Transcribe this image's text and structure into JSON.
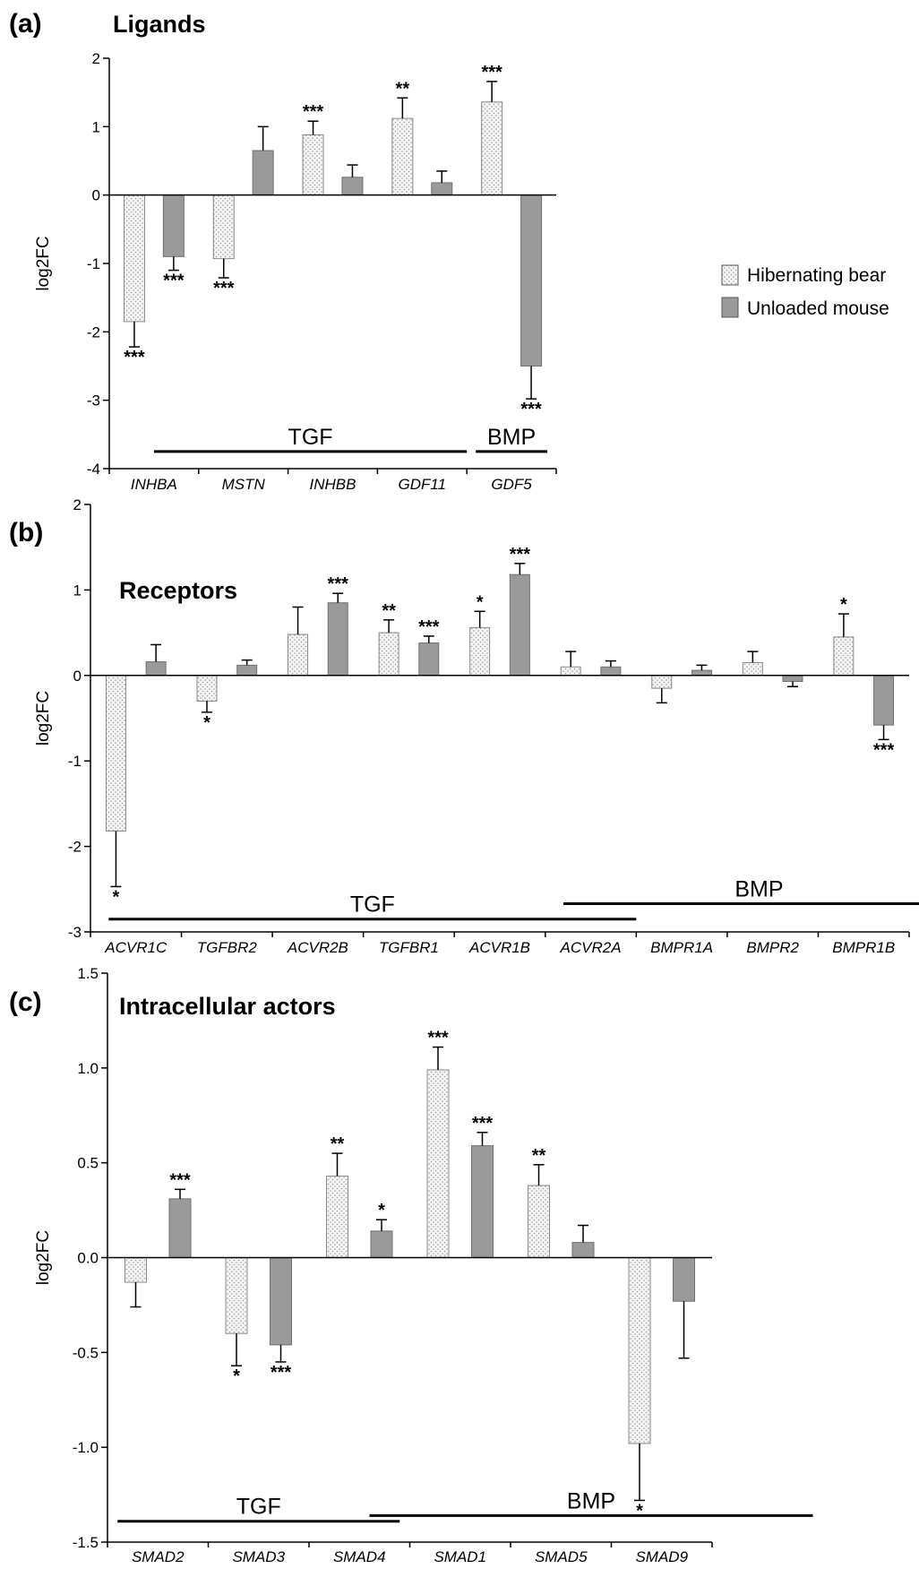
{
  "legend": {
    "bear": "Hibernating bear",
    "mouse": "Unloaded mouse"
  },
  "colors": {
    "bear_fill": "#f4f4f4",
    "bear_dot": "#9a9a9a",
    "mouse_fill": "#9a9a9a",
    "axis": "#000000"
  },
  "chart_data": [
    {
      "type": "bar",
      "panel_label": "(a)",
      "title": "Ligands",
      "ylabel": "log2FC",
      "ylim": [
        -4,
        2
      ],
      "yticks": [
        -4,
        -3,
        -2,
        -1,
        0,
        1,
        2
      ],
      "ytick_labels": [
        "-4",
        "-3",
        "-2",
        "-1",
        "0",
        "1",
        "2"
      ],
      "categories": [
        "INHBA",
        "MSTN",
        "INHBB",
        "GDF11",
        "GDF5"
      ],
      "series": [
        {
          "name": "Hibernating bear",
          "values": [
            -1.85,
            -0.93,
            0.88,
            1.12,
            1.36
          ],
          "errors": [
            0.37,
            0.28,
            0.2,
            0.3,
            0.3
          ],
          "sig": [
            "***",
            "***",
            "***",
            "**",
            "***"
          ]
        },
        {
          "name": "Unloaded mouse",
          "values": [
            -0.9,
            0.65,
            0.26,
            0.18,
            -2.5
          ],
          "errors": [
            0.2,
            0.35,
            0.18,
            0.17,
            0.48
          ],
          "sig": [
            "***",
            "",
            "",
            "",
            "***"
          ]
        }
      ],
      "groups": [
        {
          "label": "TGF",
          "from": 0,
          "to": 3.5,
          "y": -3.75
        },
        {
          "label": "BMP",
          "from": 3.6,
          "to": 4.4,
          "y": -3.75
        }
      ]
    },
    {
      "type": "bar",
      "panel_label": "(b)",
      "title": "Receptors",
      "ylabel": "log2FC",
      "ylim": [
        -3,
        2
      ],
      "yticks": [
        -3,
        -2,
        -1,
        0,
        1,
        2
      ],
      "ytick_labels": [
        "-3",
        "-2",
        "-1",
        "0",
        "1",
        "2"
      ],
      "categories": [
        "ACVR1C",
        "TGFBR2",
        "ACVR2B",
        "TGFBR1",
        "ACVR1B",
        "ACVR2A",
        "BMPR1A",
        "BMPR2",
        "BMPR1B"
      ],
      "series": [
        {
          "name": "Hibernating bear",
          "values": [
            -1.82,
            -0.3,
            0.48,
            0.5,
            0.56,
            0.1,
            -0.15,
            0.15,
            0.45
          ],
          "errors": [
            0.65,
            0.13,
            0.32,
            0.15,
            0.19,
            0.18,
            0.17,
            0.13,
            0.27
          ],
          "sig": [
            "*",
            "*",
            "",
            "**",
            "*",
            "",
            "",
            "",
            "*"
          ]
        },
        {
          "name": "Unloaded mouse",
          "values": [
            0.16,
            0.12,
            0.85,
            0.38,
            1.18,
            0.1,
            0.06,
            -0.07,
            -0.58
          ],
          "errors": [
            0.2,
            0.06,
            0.11,
            0.08,
            0.13,
            0.07,
            0.06,
            0.06,
            0.17
          ],
          "sig": [
            "",
            "",
            "***",
            "***",
            "***",
            "",
            "",
            "",
            "***"
          ]
        }
      ],
      "groups": [
        {
          "label": "TGF",
          "from": -0.3,
          "to": 5.5,
          "y": -2.85
        },
        {
          "label": "BMP",
          "from": 4.7,
          "to": 9.0,
          "y": -2.67
        }
      ]
    },
    {
      "type": "bar",
      "panel_label": "(c)",
      "title": "Intracellular actors",
      "ylabel": "log2FC",
      "ylim": [
        -1.5,
        1.5
      ],
      "yticks": [
        -1.5,
        -1.0,
        -0.5,
        0.0,
        0.5,
        1.0,
        1.5
      ],
      "ytick_labels": [
        "-1.5",
        "-1.0",
        "-0.5",
        "0.0",
        "0.5",
        "1.0",
        "1.5"
      ],
      "categories": [
        "SMAD2",
        "SMAD3",
        "SMAD4",
        "SMAD1",
        "SMAD5",
        "SMAD9"
      ],
      "series": [
        {
          "name": "Hibernating bear",
          "values": [
            -0.13,
            -0.4,
            0.43,
            0.99,
            0.38,
            -0.98
          ],
          "errors": [
            0.13,
            0.17,
            0.12,
            0.12,
            0.11,
            0.3
          ],
          "sig": [
            "",
            "*",
            "**",
            "***",
            "**",
            "*"
          ]
        },
        {
          "name": "Unloaded mouse",
          "values": [
            0.31,
            -0.46,
            0.14,
            0.59,
            0.08,
            -0.23
          ],
          "errors": [
            0.05,
            0.09,
            0.06,
            0.07,
            0.09,
            0.3
          ],
          "sig": [
            "***",
            "***",
            "*",
            "***",
            "",
            ""
          ]
        }
      ],
      "groups": [
        {
          "label": "TGF",
          "from": -0.4,
          "to": 2.4,
          "y": -1.39
        },
        {
          "label": "BMP",
          "from": 2.1,
          "to": 6.5,
          "y": -1.36
        }
      ]
    }
  ]
}
